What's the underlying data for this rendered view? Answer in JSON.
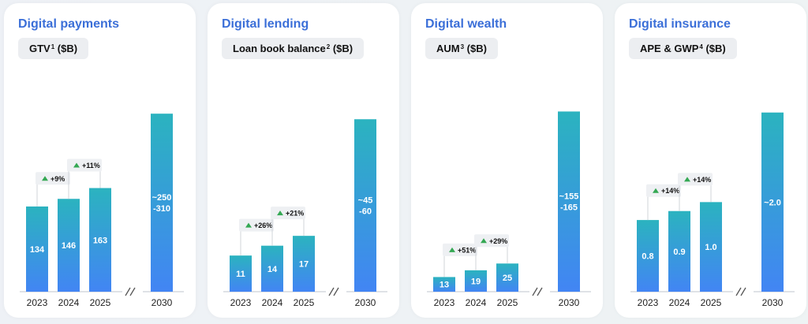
{
  "panels": [
    {
      "title": "Digital payments",
      "metric": "GTV",
      "metric_sup": "1",
      "metric_unit": " ($B)"
    },
    {
      "title": "Digital lending",
      "metric": "Loan book balance",
      "metric_sup": "2",
      "metric_unit": " ($B)"
    },
    {
      "title": "Digital wealth",
      "metric": "AUM",
      "metric_sup": "3",
      "metric_unit": " ($B)"
    },
    {
      "title": "Digital insurance",
      "metric": "APE & GWP",
      "metric_sup": "4",
      "metric_unit": " ($B)"
    }
  ],
  "chart_data": [
    {
      "type": "bar",
      "title": "Digital payments",
      "ylabel": "GTV1 ($B)",
      "categories": [
        "2023",
        "2024",
        "2025",
        "2030"
      ],
      "values": [
        134,
        146,
        163,
        280
      ],
      "data_labels": [
        "134",
        "146",
        "163",
        "~250\n-310"
      ],
      "growth_labels": [
        "+9%",
        "+11%"
      ],
      "axis_break_before": "2030",
      "ylim": [
        0,
        310
      ],
      "gradient": [
        "#2bb3bf",
        "#4285f4"
      ]
    },
    {
      "type": "bar",
      "title": "Digital lending",
      "ylabel": "Loan book balance2 ($B)",
      "categories": [
        "2023",
        "2024",
        "2025",
        "2030"
      ],
      "values": [
        11,
        14,
        17,
        52.5
      ],
      "data_labels": [
        "11",
        "14",
        "17",
        "~45\n-60"
      ],
      "growth_labels": [
        "+26%",
        "+21%"
      ],
      "axis_break_before": "2030",
      "ylim": [
        0,
        60
      ],
      "gradient": [
        "#2bb3bf",
        "#4285f4"
      ]
    },
    {
      "type": "bar",
      "title": "Digital wealth",
      "ylabel": "AUM3 ($B)",
      "categories": [
        "2023",
        "2024",
        "2025",
        "2030"
      ],
      "values": [
        13,
        19,
        25,
        160
      ],
      "data_labels": [
        "13",
        "19",
        "25",
        "~155\n-165"
      ],
      "growth_labels": [
        "+51%",
        "+29%"
      ],
      "axis_break_before": "2030",
      "ylim": [
        0,
        175
      ],
      "gradient": [
        "#2bb3bf",
        "#4285f4"
      ]
    },
    {
      "type": "bar",
      "title": "Digital insurance",
      "ylabel": "APE & GWP4 ($B)",
      "categories": [
        "2023",
        "2024",
        "2025",
        "2030"
      ],
      "values": [
        0.8,
        0.9,
        1.0,
        2.0
      ],
      "data_labels": [
        "0.8",
        "0.9",
        "1.0",
        "~2.0"
      ],
      "growth_labels": [
        "+14%",
        "+14%"
      ],
      "axis_break_before": "2030",
      "ylim": [
        0,
        2.2
      ],
      "gradient": [
        "#2bb3bf",
        "#4285f4"
      ]
    }
  ]
}
